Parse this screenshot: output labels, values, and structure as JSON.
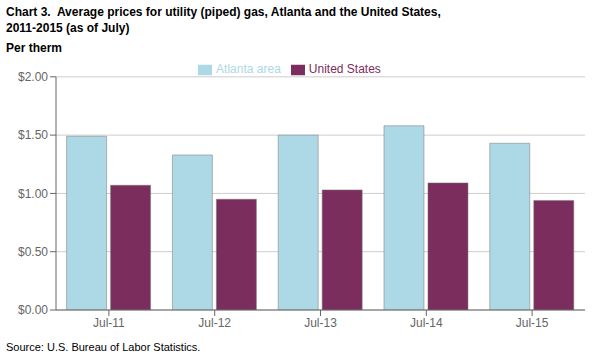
{
  "chart_data": {
    "type": "bar",
    "title": "Chart 3.  Average prices for utility (piped) gas, Atlanta and the United States,",
    "subtitle": "2011-2015 (as of July)",
    "y_label": "Per therm",
    "source": "Source: U.S. Bureau of Labor Statistics.",
    "categories": [
      "Jul-11",
      "Jul-12",
      "Jul-13",
      "Jul-14",
      "Jul-15"
    ],
    "series": [
      {
        "name": "Atlanta area",
        "color": "#ADD8E6",
        "values": [
          1.49,
          1.33,
          1.5,
          1.58,
          1.43
        ]
      },
      {
        "name": "United States",
        "color": "#7B2D5E",
        "values": [
          1.07,
          0.95,
          1.03,
          1.09,
          0.94
        ]
      }
    ],
    "ylim": [
      0.0,
      2.0
    ],
    "yticks": [
      {
        "value": 0.0,
        "label": "$0.00"
      },
      {
        "value": 0.5,
        "label": "$0.50"
      },
      {
        "value": 1.0,
        "label": "$1.00"
      },
      {
        "value": 1.5,
        "label": "$1.50"
      },
      {
        "value": 2.0,
        "label": "$2.00"
      }
    ],
    "grid": true,
    "legend": "top"
  }
}
